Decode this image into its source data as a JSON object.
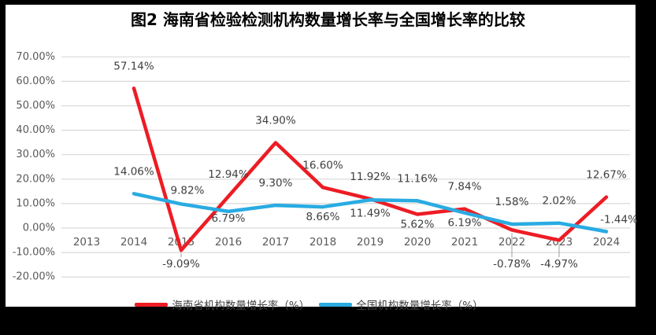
{
  "chart_data": {
    "type": "line",
    "title": "图2 海南省检验检测机构数量增长率与全国增长率的比较",
    "categories": [
      "2013",
      "2014",
      "2015",
      "2016",
      "2017",
      "2018",
      "2019",
      "2020",
      "2021",
      "2022",
      "2023",
      "2024"
    ],
    "y_axis": {
      "min": -20,
      "max": 70,
      "step": 10,
      "tick_labels": [
        "70.00%",
        "60.00%",
        "50.00%",
        "40.00%",
        "30.00%",
        "20.00%",
        "10.00%",
        "0.00%",
        "-10.00%",
        "-20.00%"
      ]
    },
    "grid": true,
    "legend_position": "bottom",
    "series": [
      {
        "id": "hainan",
        "name": "海南省机构数量增长率（%）",
        "color": "#ed1c24",
        "points": [
          {
            "x": "2014",
            "value": 57.14,
            "label": "57.14%",
            "label_pos": "above"
          },
          {
            "x": "2015",
            "value": -9.09,
            "label": "-9.09%",
            "label_pos": "below-leader"
          },
          {
            "x": "2016",
            "value": 12.94,
            "label": "12.94%",
            "label_pos": "above"
          },
          {
            "x": "2017",
            "value": 34.9,
            "label": "34.90%",
            "label_pos": "above"
          },
          {
            "x": "2018",
            "value": 16.6,
            "label": "16.60%",
            "label_pos": "above"
          },
          {
            "x": "2019",
            "value": 11.92,
            "label": "11.92%",
            "label_pos": "above"
          },
          {
            "x": "2020",
            "value": 5.62,
            "label": "5.62%",
            "label_pos": "below"
          },
          {
            "x": "2021",
            "value": 7.84,
            "label": "7.84%",
            "label_pos": "above"
          },
          {
            "x": "2022",
            "value": -0.78,
            "label": "-0.78%",
            "label_pos": "below-leader"
          },
          {
            "x": "2023",
            "value": -4.97,
            "label": "-4.97%",
            "label_pos": "below-leader"
          },
          {
            "x": "2024",
            "value": 12.67,
            "label": "12.67%",
            "label_pos": "above"
          }
        ]
      },
      {
        "id": "national",
        "name": "全国机构数量增长率（%）",
        "color": "#29abe2",
        "points": [
          {
            "x": "2014",
            "value": 14.06,
            "label": "14.06%",
            "label_pos": "above"
          },
          {
            "x": "2015",
            "value": 9.82,
            "label": "9.82%",
            "label_pos": "above",
            "dy": 11,
            "dx": 8
          },
          {
            "x": "2016",
            "value": 6.79,
            "label": "6.79%",
            "label_pos": "below",
            "dy": -4
          },
          {
            "x": "2017",
            "value": 9.3,
            "label": "9.30%",
            "label_pos": "above"
          },
          {
            "x": "2018",
            "value": 8.66,
            "label": "8.66%",
            "label_pos": "below"
          },
          {
            "x": "2019",
            "value": 11.49,
            "label": "11.49%",
            "label_pos": "below",
            "dy": 4
          },
          {
            "x": "2020",
            "value": 11.16,
            "label": "11.16%",
            "label_pos": "above"
          },
          {
            "x": "2021",
            "value": 6.19,
            "label": "6.19%",
            "label_pos": "below"
          },
          {
            "x": "2022",
            "value": 1.58,
            "label": "1.58%",
            "label_pos": "above"
          },
          {
            "x": "2023",
            "value": 2.02,
            "label": "2.02%",
            "label_pos": "above"
          },
          {
            "x": "2024",
            "value": -1.44,
            "label": "-1.44%",
            "label_pos": "above-right"
          }
        ]
      }
    ]
  },
  "colors": {
    "frame": "#000000",
    "panel": "#ffffff",
    "gridline": "#d9d9d9",
    "axis_text": "#595959",
    "data_label_text": "#3f3f3f",
    "leader_line": "#9e9e9e"
  }
}
